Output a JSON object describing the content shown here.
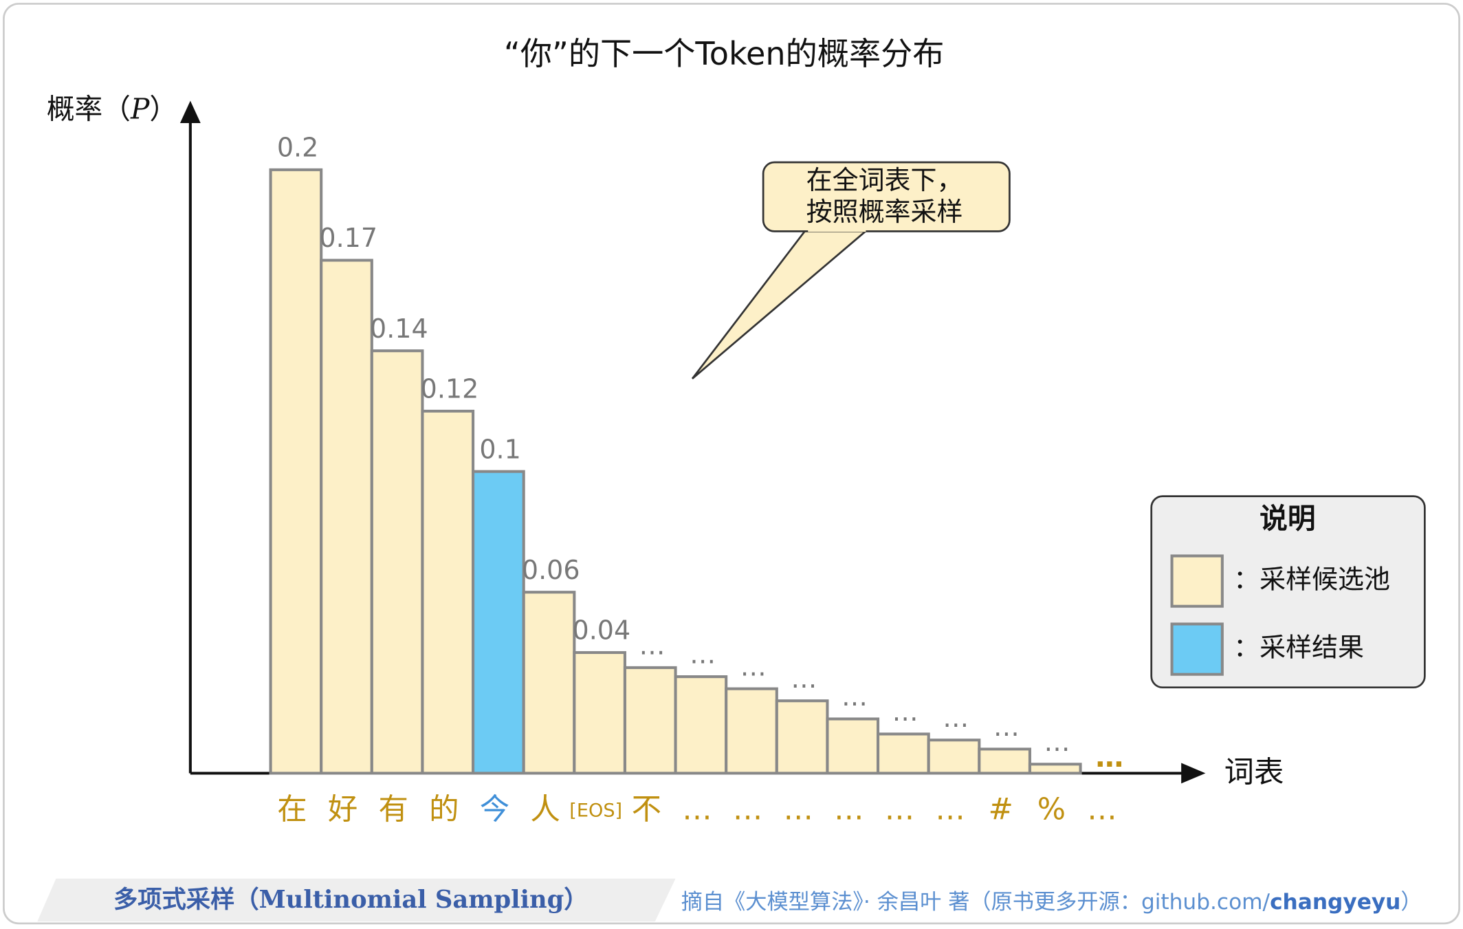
{
  "chart_data": {
    "type": "bar",
    "title": "“你”的下一个Token的概率分布",
    "y_label": {
      "before": "概率（",
      "symbol": "P",
      "after": "）"
    },
    "x_label": "词表",
    "categories": [
      "在",
      "好",
      "有",
      "的",
      "今",
      "人",
      "[EOS]",
      "不",
      "…",
      "…",
      "…",
      "…",
      "…",
      "…",
      "#",
      "%",
      "…"
    ],
    "values": [
      0.2,
      0.17,
      0.14,
      0.12,
      0.1,
      0.06,
      0.04,
      0.035,
      0.032,
      0.028,
      0.024,
      0.018,
      0.013,
      0.011,
      0.008,
      0.003,
      null
    ],
    "value_labels": [
      "0.2",
      "0.17",
      "0.14",
      "0.12",
      "0.1",
      "0.06",
      "0.04",
      "…",
      "…",
      "…",
      "…",
      "…",
      "…",
      "…",
      "…",
      "…",
      null
    ],
    "color": "#fdf0c8",
    "sampled": "今",
    "sampled_color": "#6ccbf4",
    "label_color": "#c09010",
    "ylim": [
      0,
      0.2
    ],
    "annotation": [
      "在全词表下，",
      "按照概率采样"
    ],
    "legend": {
      "title": "说明",
      "items": [
        {
          "label": "：采样候选池",
          "color": "#fdf0c8"
        },
        {
          "label": "：采样结果",
          "color": "#6ccbf4"
        }
      ]
    }
  },
  "footer": {
    "caption": "多项式采样（Multinomial Sampling）",
    "source": "摘自《大模型算法》· 余昌叶 著（原书更多开源：github.com/",
    "source_bold": "changyeyu",
    "source_end": "）"
  }
}
